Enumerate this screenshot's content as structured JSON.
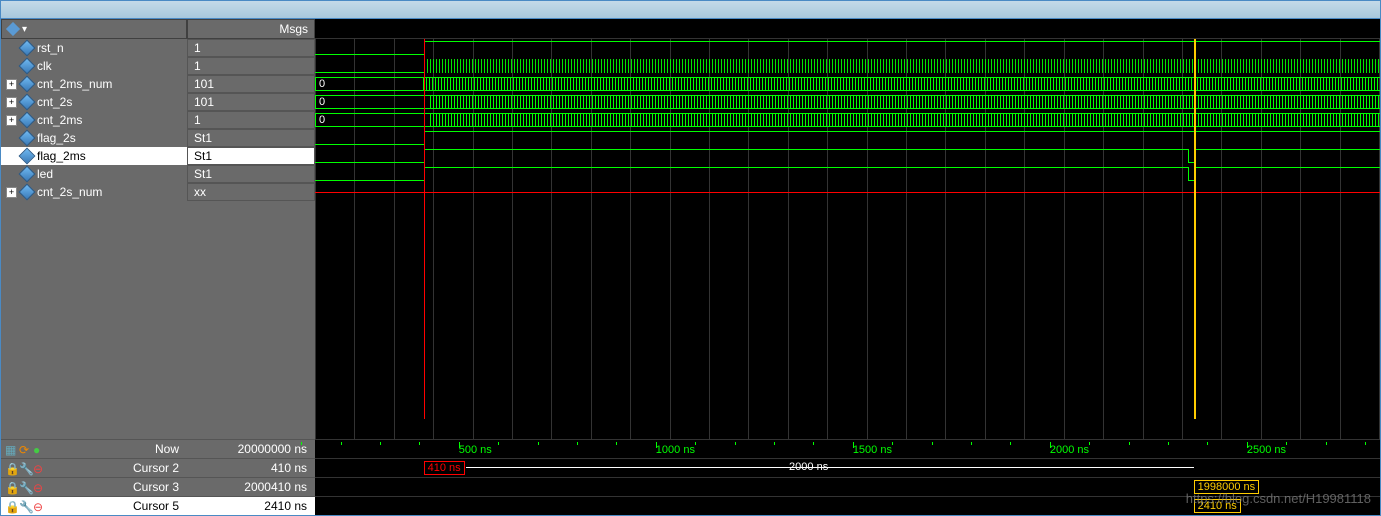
{
  "colors": {
    "panel_bg": "#6a6a6a",
    "wave_bg": "#000000",
    "signal_green": "#00ff00",
    "signal_red": "#ff0000",
    "cursor_yellow": "#ffcc00",
    "border_blue": "#4a8ac4",
    "text_white": "#ffffff",
    "selected_bg": "#ffffff",
    "selected_text": "#000000",
    "grid_line": "#333333"
  },
  "panels": {
    "msgs_header": "Msgs"
  },
  "signals": [
    {
      "name": "rst_n",
      "value": "1",
      "expandable": false,
      "selected": false
    },
    {
      "name": "clk",
      "value": "1",
      "expandable": false,
      "selected": false
    },
    {
      "name": "cnt_2ms_num",
      "value": "101",
      "expandable": true,
      "selected": false
    },
    {
      "name": "cnt_2s",
      "value": "101",
      "expandable": true,
      "selected": false
    },
    {
      "name": "cnt_2ms",
      "value": "1",
      "expandable": true,
      "selected": false
    },
    {
      "name": "flag_2s",
      "value": "St1",
      "expandable": false,
      "selected": false
    },
    {
      "name": "flag_2ms",
      "value": "St1",
      "expandable": false,
      "selected": true
    },
    {
      "name": "led",
      "value": "St1",
      "expandable": false,
      "selected": false
    },
    {
      "name": "cnt_2s_num",
      "value": "xx",
      "expandable": true,
      "selected": false
    }
  ],
  "timeline": {
    "now_label": "Now",
    "now_value": "20000000 ns",
    "cursors": [
      {
        "label": "Cursor 2",
        "value": "410 ns",
        "selected": false,
        "color": "red",
        "position_pct": 10.2,
        "marker_text": "410 ns"
      },
      {
        "label": "Cursor 3",
        "value": "2000410 ns",
        "selected": false,
        "color": "yellow",
        "position_pct": 82.5,
        "marker_text": "1998000 ns"
      },
      {
        "label": "Cursor 5",
        "value": "2410 ns",
        "selected": true,
        "color": "yellow",
        "position_pct": 82.5,
        "marker_text": "2410 ns"
      }
    ],
    "span_label": "2000 ns",
    "ruler_labels": [
      {
        "text": "500 ns",
        "position_pct": 13.5
      },
      {
        "text": "1000 ns",
        "position_pct": 32.0
      },
      {
        "text": "1500 ns",
        "position_pct": 50.5
      },
      {
        "text": "2000 ns",
        "position_pct": 69.0
      },
      {
        "text": "2500 ns",
        "position_pct": 87.5
      }
    ]
  },
  "waves": {
    "rst_n": {
      "type": "edge_high",
      "edge_pct": 10.2
    },
    "clk": {
      "type": "clock",
      "start_pct": 10.2
    },
    "cnt_2ms_num": {
      "type": "bus",
      "zero_end_pct": 10.2,
      "dense_start_pct": 10.2
    },
    "cnt_2s": {
      "type": "bus",
      "zero_end_pct": 10.9,
      "dense_start_pct": 10.9
    },
    "cnt_2ms": {
      "type": "bus",
      "zero_end_pct": 10.9,
      "dense_start_pct": 10.9
    },
    "flag_2s": {
      "type": "edge_high",
      "edge_pct": 10.2
    },
    "flag_2ms": {
      "type": "pulse",
      "rise_pct": 10.2,
      "fall_pct": 82.0,
      "rise2_pct": 82.5
    },
    "led": {
      "type": "pulse",
      "rise_pct": 10.2,
      "fall_pct": 82.0,
      "rise2_pct": 82.5
    },
    "cnt_2s_num": {
      "type": "red_line"
    }
  },
  "watermark": "https://blog.csdn.net/H19981118"
}
